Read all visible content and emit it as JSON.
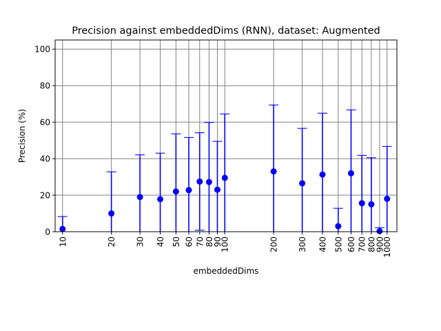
{
  "chart_data": {
    "type": "scatter",
    "title": "Precision against embeddedDims (RNN), dataset: Augmented",
    "xlabel": "embeddedDims",
    "ylabel": "Precision (%)",
    "x_scale": "log",
    "xlim": [
      9.0,
      1150
    ],
    "ylim": [
      0,
      105
    ],
    "y_ticks": [
      0,
      20,
      40,
      60,
      80,
      100
    ],
    "grid": true,
    "marker_color": "#0000ff",
    "grid_color": "#808080",
    "series": [
      {
        "points": [
          {
            "x": 10,
            "label": "10",
            "y": 1.5,
            "err_low": 0,
            "err_high": 8.3
          },
          {
            "x": 20,
            "label": "20",
            "y": 10.0,
            "err_low": 0,
            "err_high": 32.8
          },
          {
            "x": 30,
            "label": "30",
            "y": 19.0,
            "err_low": 0,
            "err_high": 42.1
          },
          {
            "x": 40,
            "label": "40",
            "y": 17.8,
            "err_low": 0,
            "err_high": 43.0
          },
          {
            "x": 50,
            "label": "50",
            "y": 22.0,
            "err_low": 0,
            "err_high": 53.6
          },
          {
            "x": 60,
            "label": "60",
            "y": 22.8,
            "err_low": 0,
            "err_high": 51.6
          },
          {
            "x": 70,
            "label": "70",
            "y": 27.5,
            "err_low": 0.8,
            "err_high": 54.2
          },
          {
            "x": 80,
            "label": "80",
            "y": 27.2,
            "err_low": 0,
            "err_high": 59.8
          },
          {
            "x": 90,
            "label": "90",
            "y": 23.0,
            "err_low": 0,
            "err_high": 49.5
          },
          {
            "x": 100,
            "label": "100",
            "y": 29.5,
            "err_low": 0,
            "err_high": 64.5
          },
          {
            "x": 200,
            "label": "200",
            "y": 33.0,
            "err_low": 0,
            "err_high": 69.4
          },
          {
            "x": 300,
            "label": "300",
            "y": 26.5,
            "err_low": 0,
            "err_high": 56.6
          },
          {
            "x": 400,
            "label": "400",
            "y": 31.3,
            "err_low": 0,
            "err_high": 64.9
          },
          {
            "x": 500,
            "label": "500",
            "y": 3.0,
            "err_low": 0,
            "err_high": 12.8
          },
          {
            "x": 600,
            "label": "600",
            "y": 32.0,
            "err_low": 0,
            "err_high": 66.7
          },
          {
            "x": 700,
            "label": "700",
            "y": 15.6,
            "err_low": 0,
            "err_high": 41.8
          },
          {
            "x": 800,
            "label": "800",
            "y": 15.0,
            "err_low": 0,
            "err_high": 40.5
          },
          {
            "x": 900,
            "label": "900",
            "y": 0.3,
            "err_low": 0,
            "err_high": 2.2
          },
          {
            "x": 1000,
            "label": "1000",
            "y": 18.0,
            "err_low": 0,
            "err_high": 46.7
          }
        ]
      }
    ]
  }
}
